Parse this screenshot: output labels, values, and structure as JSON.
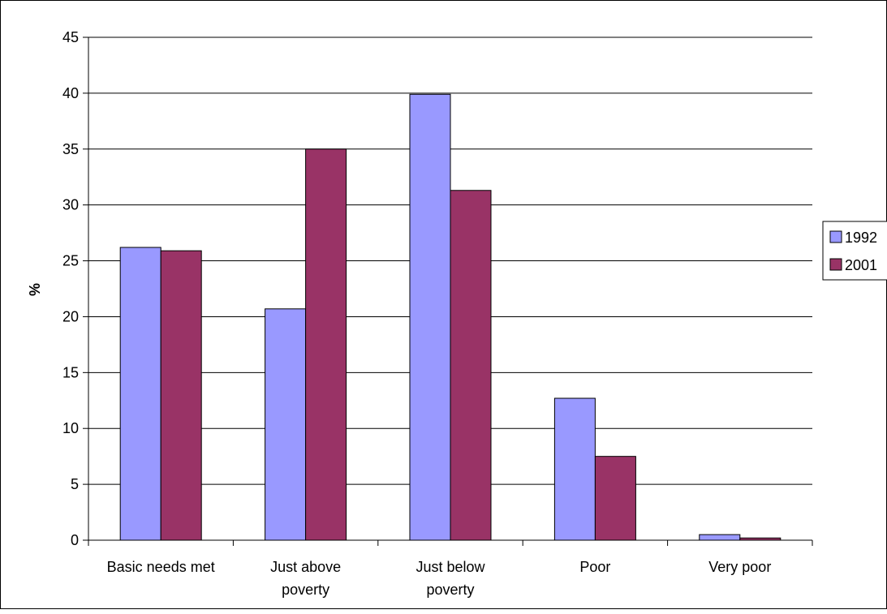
{
  "chart_data": {
    "type": "bar",
    "categories": [
      [
        "Basic needs met"
      ],
      [
        "Just above",
        "poverty"
      ],
      [
        "Just below",
        "poverty"
      ],
      [
        "Poor"
      ],
      [
        "Very poor"
      ]
    ],
    "series": [
      {
        "name": "1992",
        "values": [
          26.2,
          20.7,
          39.9,
          12.7,
          0.5
        ],
        "color": "#9999ff"
      },
      {
        "name": "2001",
        "values": [
          25.9,
          35.0,
          31.3,
          7.5,
          0.2
        ],
        "color": "#993366"
      }
    ],
    "ylabel": "%",
    "ylim": [
      0,
      45
    ],
    "yticks": [
      0,
      5,
      10,
      15,
      20,
      25,
      30,
      35,
      40,
      45
    ],
    "grid": true,
    "legend": "right"
  }
}
